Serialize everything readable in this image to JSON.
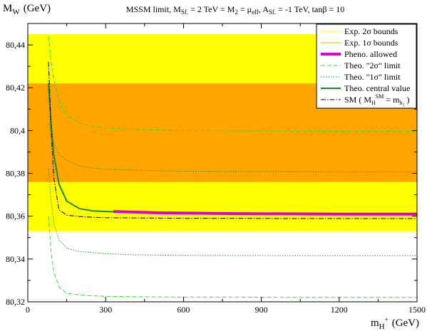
{
  "chart_data": {
    "type": "line",
    "title": "MSSM limit, M_Sf. = 2 TeV = M_2 = μ_eff, A_Sf. = -1 TeV, tanβ = 10",
    "title_parts": {
      "lead": "MSSM limit, M",
      "sub1": "Sf.",
      "mid1": " = 2 TeV = M",
      "sub2": "2",
      "mid2": " = μ",
      "sub3": "eff",
      "mid3": ", A",
      "sub4": "Sf.",
      "tail": " = -1 TeV, tanβ = 10"
    },
    "xlabel": "m_H+ (GeV)",
    "xlabel_parts": {
      "main": "m",
      "sub": "H",
      "sup": "+",
      "unit": "(GeV)"
    },
    "ylabel": "M_W (GeV)",
    "ylabel_parts": {
      "main": "M",
      "sub": "W",
      "unit": "(GeV)"
    },
    "xlim": [
      0,
      1500
    ],
    "ylim": [
      80.32,
      80.45
    ],
    "xticks": [
      0,
      300,
      600,
      900,
      1200,
      1500
    ],
    "yticks": [
      80.32,
      80.34,
      80.36,
      80.38,
      80.4,
      80.42,
      80.44
    ],
    "ytick_labels": [
      "80,32",
      "80,34",
      "80,36",
      "80,38",
      "80,4",
      "80,42",
      "80,44"
    ],
    "bands": [
      {
        "name": "Exp. 2σ bounds",
        "range": [
          80.353,
          80.445
        ],
        "color": "#ffff00"
      },
      {
        "name": "Exp. 1σ bounds",
        "range": [
          80.376,
          80.422
        ],
        "color": "#ffa500"
      }
    ],
    "x": [
      80,
      90,
      100,
      120,
      150,
      200,
      250,
      300,
      400,
      500,
      600,
      800,
      1000,
      1200,
      1500
    ],
    "series": [
      {
        "name": "Theo. \"2σ\" upper",
        "style": "dashed",
        "color": "#33dd33",
        "values": [
          80.444,
          80.432,
          80.424,
          80.414,
          80.407,
          80.4035,
          80.402,
          80.4012,
          80.4006,
          80.4002,
          80.4,
          80.3998,
          80.3997,
          80.3996,
          80.3996
        ]
      },
      {
        "name": "Theo. \"1σ\" upper",
        "style": "dotted",
        "color": "#229922",
        "values": [
          80.403,
          80.398,
          80.394,
          80.389,
          80.386,
          80.3835,
          80.3825,
          80.382,
          80.3815,
          80.3812,
          80.381,
          80.3809,
          80.3808,
          80.3807,
          80.3807
        ]
      },
      {
        "name": "Theo. central value",
        "style": "solid",
        "color": "#1a8c1a",
        "values": [
          80.422,
          80.402,
          80.389,
          80.375,
          80.367,
          80.3635,
          80.3625,
          80.3622,
          80.3618,
          80.3616,
          80.3614,
          80.3612,
          80.3611,
          80.361,
          80.361
        ]
      },
      {
        "name": "Theo. \"1σ\" lower",
        "style": "dotted",
        "color": "#229922",
        "values": [
          80.382,
          80.367,
          80.357,
          80.349,
          80.345,
          80.3435,
          80.343,
          80.3425,
          80.342,
          80.3418,
          80.3417,
          80.3416,
          80.3415,
          80.3415,
          80.3415
        ]
      },
      {
        "name": "Theo. \"2σ\" lower",
        "style": "dashed",
        "color": "#33dd33",
        "values": [
          80.36,
          80.343,
          80.334,
          80.327,
          80.324,
          80.3232,
          80.3228,
          80.3226,
          80.3224,
          80.3223,
          80.3222,
          80.3222,
          80.3221,
          80.3221,
          80.3221
        ]
      },
      {
        "name": "SM",
        "style": "dashdot",
        "color": "#000000",
        "values": [
          80.432,
          80.4,
          80.378,
          80.363,
          80.3605,
          80.3598,
          80.3595,
          80.3593,
          80.3592,
          80.3591,
          80.359,
          80.359,
          80.3589,
          80.3589,
          80.3589
        ]
      }
    ],
    "pheno_allowed": {
      "name": "Pheno. allowed",
      "color": "#dd00dd",
      "x": [
        330,
        500,
        800,
        1200,
        1500
      ],
      "values": [
        80.3622,
        80.3616,
        80.3612,
        80.361,
        80.361
      ]
    },
    "legend": {
      "position": "top-right",
      "entries": [
        {
          "label": "Exp. 2σ bounds",
          "color": "#ffff00",
          "style": "solid-thin"
        },
        {
          "label": "Exp. 1σ bounds",
          "color": "#ffa500",
          "style": "solid-thin"
        },
        {
          "label": "Pheno. allowed",
          "color": "#dd00dd",
          "style": "solid-thick"
        },
        {
          "label": "Theo. \"2σ\" limit",
          "color": "#33dd33",
          "style": "dashed"
        },
        {
          "label": "Theo. \"1σ\" limit",
          "color": "#229922",
          "style": "dotted"
        },
        {
          "label": "Theo. central value",
          "color": "#1a8c1a",
          "style": "solid"
        },
        {
          "label": "SM ( M_H^SM = m_h1 )",
          "color": "#000000",
          "style": "dashdot"
        }
      ],
      "sm_parts": {
        "lead": "SM ( M",
        "sub": "H",
        "sup": "SM",
        "mid": " = m",
        "sub2": "h",
        "sub3": "1",
        "tail": " )"
      }
    }
  }
}
